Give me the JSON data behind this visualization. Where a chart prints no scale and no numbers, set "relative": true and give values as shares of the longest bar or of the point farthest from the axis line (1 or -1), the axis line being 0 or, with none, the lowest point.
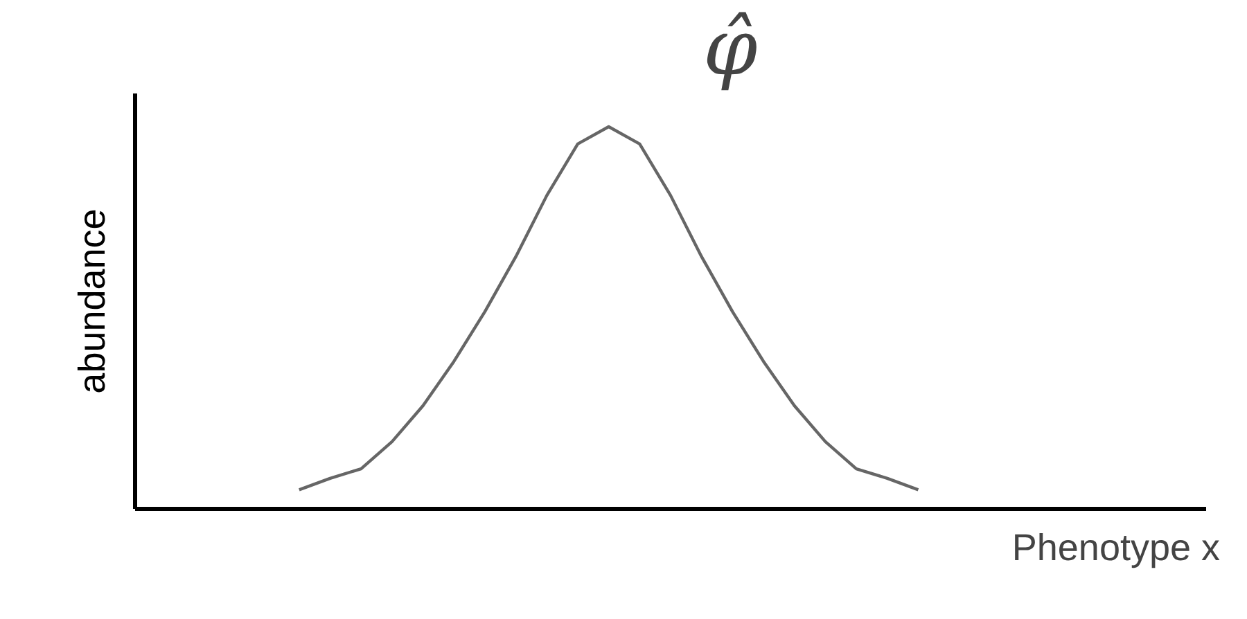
{
  "chart_data": {
    "type": "line",
    "relative": true,
    "xlabel": "Phenotype x",
    "ylabel": "abundance",
    "annotations": [
      "φ̂"
    ],
    "grid": false,
    "marker": "none",
    "line_style": "solid",
    "categories": [
      null,
      null,
      null,
      null,
      null,
      null,
      null,
      null,
      null,
      null,
      null,
      null,
      null,
      null,
      null,
      null,
      null,
      null,
      null,
      null,
      null,
      null,
      null,
      null,
      null,
      null,
      null,
      null,
      null,
      null,
      null,
      null,
      null,
      null,
      null
    ],
    "series": [
      {
        "color": "#666666",
        "values": [
          null,
          null,
          null,
          null,
          null,
          0.05,
          0.08,
          0.105,
          0.176,
          0.27,
          0.386,
          0.516,
          0.66,
          0.82,
          0.955,
          1.0,
          0.955,
          0.82,
          0.66,
          0.516,
          0.386,
          0.27,
          0.176,
          0.105,
          0.08,
          0.05,
          null,
          null,
          null,
          null,
          null,
          null,
          null,
          null,
          null
        ]
      }
    ]
  }
}
